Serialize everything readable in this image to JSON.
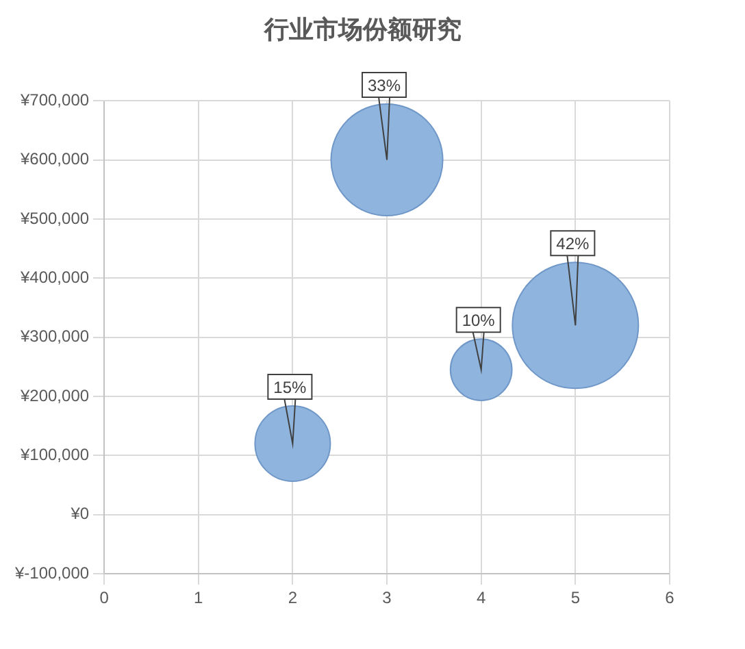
{
  "chart_data": {
    "type": "bubble",
    "title": "行业市场份额研究",
    "x": [
      2,
      3,
      4,
      5
    ],
    "values": [
      120000,
      600000,
      245000,
      320000
    ],
    "sizes": [
      15,
      33,
      10,
      42
    ],
    "value_labels": [
      "15%",
      "33%",
      "10%",
      "42%"
    ],
    "color": "#8fb4de",
    "xlim": [
      0,
      6
    ],
    "xticks": [
      0,
      1,
      2,
      3,
      4,
      5,
      6
    ],
    "ylim": [
      -100000,
      700000
    ],
    "yticks": [
      {
        "value": -100000,
        "label": "¥-100,000"
      },
      {
        "value": 0,
        "label": "¥0"
      },
      {
        "value": 100000,
        "label": "¥100,000"
      },
      {
        "value": 200000,
        "label": "¥200,000"
      },
      {
        "value": 300000,
        "label": "¥300,000"
      },
      {
        "value": 400000,
        "label": "¥400,000"
      },
      {
        "value": 500000,
        "label": "¥500,000"
      },
      {
        "value": 600000,
        "label": "¥600,000"
      },
      {
        "value": 700000,
        "label": "¥700,000"
      }
    ],
    "grid": true,
    "legend": false
  }
}
